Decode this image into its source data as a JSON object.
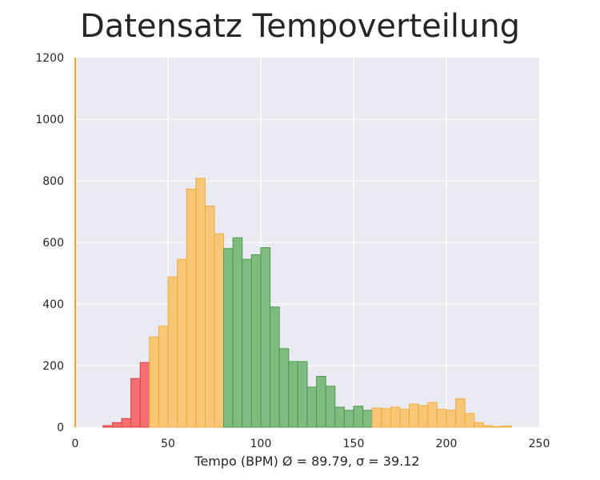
{
  "chart_data": {
    "type": "bar",
    "title": "Datensatz Tempoverteilung",
    "xlabel": "Tempo (BPM)   Ø = 89.79,   σ = 39.12",
    "ylabel": "",
    "xlim": [
      0,
      250
    ],
    "ylim": [
      0,
      1200
    ],
    "xticks": [
      "0",
      "50",
      "100",
      "150",
      "200",
      "250"
    ],
    "xtick_values": [
      0,
      50,
      100,
      150,
      200,
      250
    ],
    "yticks": [
      "0",
      "200",
      "400",
      "600",
      "800",
      "1000",
      "1200"
    ],
    "ytick_values": [
      0,
      200,
      400,
      600,
      800,
      1000,
      1200
    ],
    "grid": true,
    "bin_width": 5,
    "bins": [
      {
        "start": 15,
        "end": 20,
        "value": 5,
        "group": "slow"
      },
      {
        "start": 20,
        "end": 25,
        "value": 15,
        "group": "slow"
      },
      {
        "start": 25,
        "end": 30,
        "value": 28,
        "group": "slow"
      },
      {
        "start": 30,
        "end": 35,
        "value": 158,
        "group": "slow"
      },
      {
        "start": 35,
        "end": 40,
        "value": 210,
        "group": "slow"
      },
      {
        "start": 40,
        "end": 45,
        "value": 293,
        "group": "mid"
      },
      {
        "start": 45,
        "end": 50,
        "value": 328,
        "group": "mid"
      },
      {
        "start": 50,
        "end": 55,
        "value": 488,
        "group": "mid"
      },
      {
        "start": 55,
        "end": 60,
        "value": 545,
        "group": "mid"
      },
      {
        "start": 60,
        "end": 65,
        "value": 773,
        "group": "mid"
      },
      {
        "start": 65,
        "end": 70,
        "value": 808,
        "group": "mid"
      },
      {
        "start": 70,
        "end": 75,
        "value": 718,
        "group": "mid"
      },
      {
        "start": 75,
        "end": 80,
        "value": 628,
        "group": "mid"
      },
      {
        "start": 80,
        "end": 85,
        "value": 580,
        "group": "normal"
      },
      {
        "start": 85,
        "end": 90,
        "value": 615,
        "group": "normal"
      },
      {
        "start": 90,
        "end": 95,
        "value": 545,
        "group": "normal"
      },
      {
        "start": 95,
        "end": 100,
        "value": 560,
        "group": "normal"
      },
      {
        "start": 100,
        "end": 105,
        "value": 583,
        "group": "normal"
      },
      {
        "start": 105,
        "end": 110,
        "value": 390,
        "group": "normal"
      },
      {
        "start": 110,
        "end": 115,
        "value": 255,
        "group": "normal"
      },
      {
        "start": 115,
        "end": 120,
        "value": 213,
        "group": "normal"
      },
      {
        "start": 120,
        "end": 125,
        "value": 213,
        "group": "normal"
      },
      {
        "start": 125,
        "end": 130,
        "value": 130,
        "group": "normal"
      },
      {
        "start": 130,
        "end": 135,
        "value": 165,
        "group": "normal"
      },
      {
        "start": 135,
        "end": 140,
        "value": 133,
        "group": "normal"
      },
      {
        "start": 140,
        "end": 145,
        "value": 65,
        "group": "normal"
      },
      {
        "start": 145,
        "end": 150,
        "value": 55,
        "group": "normal"
      },
      {
        "start": 150,
        "end": 155,
        "value": 68,
        "group": "normal"
      },
      {
        "start": 155,
        "end": 160,
        "value": 55,
        "group": "normal"
      },
      {
        "start": 160,
        "end": 165,
        "value": 62,
        "group": "mid"
      },
      {
        "start": 165,
        "end": 170,
        "value": 60,
        "group": "mid"
      },
      {
        "start": 170,
        "end": 175,
        "value": 65,
        "group": "mid"
      },
      {
        "start": 175,
        "end": 180,
        "value": 58,
        "group": "mid"
      },
      {
        "start": 180,
        "end": 185,
        "value": 75,
        "group": "mid"
      },
      {
        "start": 185,
        "end": 190,
        "value": 70,
        "group": "mid"
      },
      {
        "start": 190,
        "end": 195,
        "value": 80,
        "group": "mid"
      },
      {
        "start": 195,
        "end": 200,
        "value": 58,
        "group": "mid"
      },
      {
        "start": 200,
        "end": 205,
        "value": 55,
        "group": "mid"
      },
      {
        "start": 205,
        "end": 210,
        "value": 92,
        "group": "mid"
      },
      {
        "start": 210,
        "end": 215,
        "value": 45,
        "group": "mid"
      },
      {
        "start": 215,
        "end": 220,
        "value": 15,
        "group": "mid"
      },
      {
        "start": 220,
        "end": 225,
        "value": 5,
        "group": "mid"
      },
      {
        "start": 225,
        "end": 230,
        "value": 2,
        "group": "mid"
      },
      {
        "start": 230,
        "end": 235,
        "value": 4,
        "group": "mid"
      }
    ],
    "group_colors": {
      "slow": {
        "fill": "#f36f71",
        "stroke": "#e03f43"
      },
      "mid": {
        "fill": "#f7c676",
        "stroke": "#efac3e"
      },
      "normal": {
        "fill": "#80bb80",
        "stroke": "#4e9a4e"
      }
    },
    "axis_line_color": "#f0a82a",
    "background_color": "#eaeaf2",
    "grid_color": "#ffffff"
  }
}
